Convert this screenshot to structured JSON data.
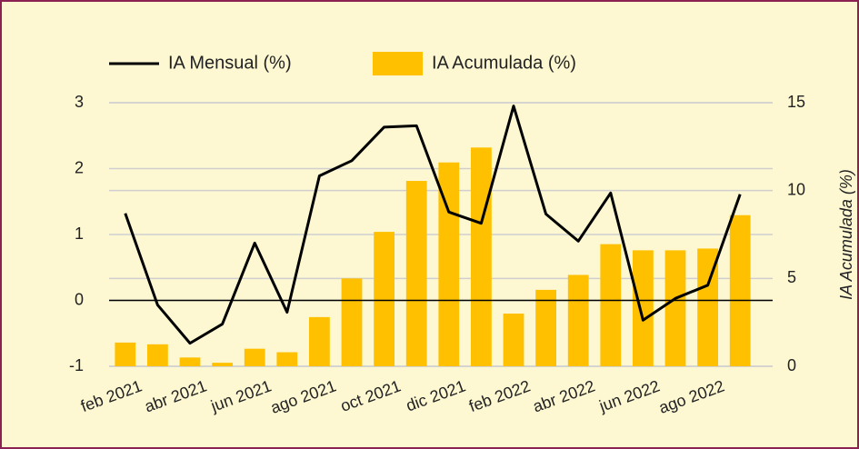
{
  "chart_data": {
    "type": "bar_line",
    "categories": [
      "feb 2021",
      null,
      "abr 2021",
      null,
      "jun 2021",
      null,
      "ago 2021",
      null,
      "oct 2021",
      null,
      "dic 2021",
      null,
      "feb 2022",
      null,
      "abr 2022",
      null,
      "jun 2022",
      null,
      "ago 2022",
      null
    ],
    "series": [
      {
        "name": "IA Mensual (%)",
        "type": "line",
        "color": "#000000",
        "values": [
          1.32,
          -0.07,
          -0.65,
          -0.36,
          0.87,
          -0.18,
          1.89,
          2.12,
          2.63,
          2.65,
          1.34,
          1.17,
          2.95,
          1.31,
          0.9,
          1.63,
          -0.3,
          0.03,
          0.23,
          1.61
        ]
      },
      {
        "name": "IA Acumulada (%)",
        "type": "bar",
        "axis": "y2",
        "color": "#ffc000",
        "values": [
          1.35,
          1.25,
          0.5,
          0.2,
          1.0,
          0.8,
          2.8,
          5.0,
          7.65,
          10.55,
          11.6,
          12.45,
          3.0,
          4.35,
          5.2,
          6.95,
          6.6,
          6.6,
          6.7,
          8.6
        ]
      }
    ],
    "ylim": [
      -1,
      3
    ],
    "yticks": [
      -1,
      0,
      1,
      2,
      3
    ],
    "y2lim": [
      0,
      15
    ],
    "y2ticks": [
      0,
      5,
      10,
      15
    ],
    "y2label": "IA Acumulada (%)",
    "grid": true
  }
}
